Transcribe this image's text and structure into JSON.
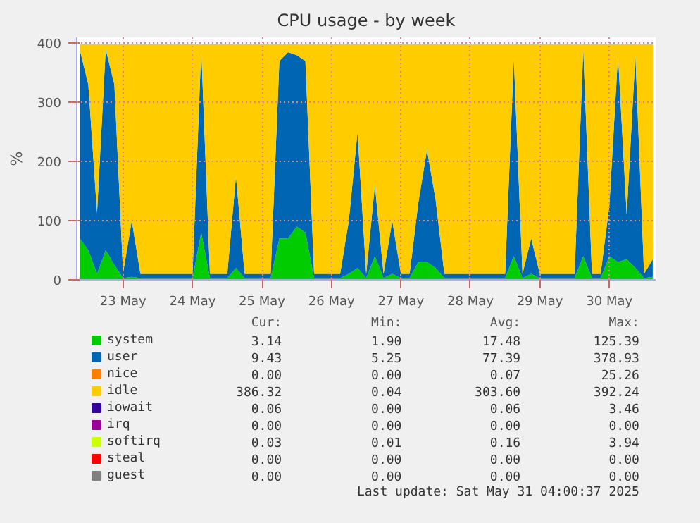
{
  "chart_data": {
    "type": "area",
    "stacked": true,
    "title": "CPU usage - by week",
    "ylabel": "%",
    "ylim": [
      0,
      410
    ],
    "yticks": [
      0,
      100,
      200,
      300,
      400
    ],
    "xlim": [
      "2025-05-22T20:00",
      "2025-05-31T04:00"
    ],
    "xticks": [
      {
        "value": "2025-05-23T12:00",
        "label": "23 May"
      },
      {
        "value": "2025-05-24T12:00",
        "label": "24 May"
      },
      {
        "value": "2025-05-25T12:00",
        "label": "25 May"
      },
      {
        "value": "2025-05-26T12:00",
        "label": "26 May"
      },
      {
        "value": "2025-05-27T12:00",
        "label": "27 May"
      },
      {
        "value": "2025-05-28T12:00",
        "label": "28 May"
      },
      {
        "value": "2025-05-29T12:00",
        "label": "29 May"
      },
      {
        "value": "2025-05-30T12:00",
        "label": "30 May"
      }
    ],
    "grid": true,
    "legend": "bottom",
    "x": [
      "2025-05-22T21:00",
      "2025-05-23T00:00",
      "2025-05-23T03:00",
      "2025-05-23T06:00",
      "2025-05-23T09:00",
      "2025-05-23T12:00",
      "2025-05-23T15:00",
      "2025-05-23T18:00",
      "2025-05-23T21:00",
      "2025-05-24T00:00",
      "2025-05-24T03:00",
      "2025-05-24T06:00",
      "2025-05-24T09:00",
      "2025-05-24T12:00",
      "2025-05-24T15:00",
      "2025-05-24T18:00",
      "2025-05-24T21:00",
      "2025-05-25T00:00",
      "2025-05-25T03:00",
      "2025-05-25T06:00",
      "2025-05-25T09:00",
      "2025-05-25T12:00",
      "2025-05-25T15:00",
      "2025-05-25T18:00",
      "2025-05-25T21:00",
      "2025-05-26T00:00",
      "2025-05-26T03:00",
      "2025-05-26T06:00",
      "2025-05-26T09:00",
      "2025-05-26T12:00",
      "2025-05-26T15:00",
      "2025-05-26T18:00",
      "2025-05-26T21:00",
      "2025-05-27T00:00",
      "2025-05-27T03:00",
      "2025-05-27T06:00",
      "2025-05-27T09:00",
      "2025-05-27T12:00",
      "2025-05-27T15:00",
      "2025-05-27T18:00",
      "2025-05-27T21:00",
      "2025-05-28T00:00",
      "2025-05-28T03:00",
      "2025-05-28T06:00",
      "2025-05-28T09:00",
      "2025-05-28T12:00",
      "2025-05-28T15:00",
      "2025-05-28T18:00",
      "2025-05-28T21:00",
      "2025-05-29T00:00",
      "2025-05-29T03:00",
      "2025-05-29T06:00",
      "2025-05-29T09:00",
      "2025-05-29T12:00",
      "2025-05-29T15:00",
      "2025-05-29T18:00",
      "2025-05-29T21:00",
      "2025-05-30T00:00",
      "2025-05-30T03:00",
      "2025-05-30T06:00",
      "2025-05-30T09:00",
      "2025-05-30T12:00",
      "2025-05-30T15:00",
      "2025-05-30T18:00",
      "2025-05-30T21:00",
      "2025-05-31T00:00",
      "2025-05-31T03:00"
    ],
    "series": [
      {
        "name": "system",
        "color": "#00cc00",
        "values": [
          70,
          50,
          10,
          50,
          25,
          3,
          5,
          3,
          3,
          3,
          3,
          3,
          3,
          3,
          80,
          3,
          3,
          3,
          20,
          3,
          3,
          3,
          3,
          70,
          70,
          90,
          80,
          3,
          3,
          3,
          3,
          10,
          20,
          3,
          40,
          3,
          10,
          3,
          3,
          30,
          30,
          20,
          3,
          3,
          3,
          3,
          3,
          3,
          3,
          3,
          40,
          3,
          10,
          3,
          3,
          3,
          3,
          3,
          40,
          3,
          3,
          40,
          30,
          35,
          20,
          3,
          5
        ]
      },
      {
        "name": "user",
        "color": "#0066b3",
        "values": [
          320,
          280,
          103,
          340,
          305,
          9,
          95,
          7,
          7,
          7,
          7,
          7,
          7,
          7,
          310,
          7,
          7,
          7,
          155,
          7,
          7,
          7,
          7,
          300,
          315,
          290,
          290,
          7,
          7,
          7,
          7,
          90,
          230,
          7,
          120,
          7,
          90,
          7,
          7,
          100,
          190,
          115,
          7,
          7,
          7,
          7,
          7,
          7,
          7,
          7,
          335,
          7,
          60,
          7,
          7,
          7,
          7,
          7,
          350,
          7,
          7,
          85,
          350,
          75,
          360,
          7,
          30
        ]
      },
      {
        "name": "nice",
        "color": "#ff8000",
        "values": [
          null,
          null,
          null,
          null,
          null,
          null,
          null,
          null,
          null,
          null,
          null,
          null,
          null,
          null,
          null,
          null,
          null,
          null,
          null,
          null,
          null,
          null,
          null,
          null,
          null,
          null,
          null,
          null,
          null,
          null,
          null,
          null,
          null,
          null,
          null,
          null,
          null,
          null,
          null,
          null,
          null,
          null,
          null,
          null,
          null,
          null,
          null,
          null,
          null,
          null,
          null,
          null,
          null,
          null,
          null,
          null,
          null,
          null,
          null,
          null,
          null,
          null,
          null,
          null,
          null,
          null,
          null
        ]
      },
      {
        "name": "idle",
        "color": "#ffcc00",
        "values": [
          8,
          68,
          285,
          8,
          68,
          386,
          298,
          388,
          388,
          388,
          388,
          388,
          388,
          388,
          8,
          388,
          388,
          388,
          223,
          388,
          388,
          388,
          388,
          28,
          13,
          18,
          28,
          388,
          388,
          388,
          388,
          298,
          148,
          388,
          238,
          388,
          298,
          388,
          388,
          268,
          178,
          263,
          388,
          388,
          388,
          388,
          388,
          388,
          388,
          388,
          23,
          388,
          328,
          388,
          388,
          388,
          388,
          388,
          8,
          388,
          388,
          273,
          18,
          288,
          18,
          388,
          363
        ]
      },
      {
        "name": "iowait",
        "color": "#330099",
        "values": [
          null,
          null,
          null,
          null,
          null,
          null,
          null,
          null,
          null,
          null,
          null,
          null,
          null,
          null,
          null,
          null,
          null,
          null,
          null,
          null,
          null,
          null,
          null,
          null,
          null,
          null,
          null,
          null,
          null,
          null,
          null,
          null,
          null,
          null,
          null,
          null,
          null,
          null,
          null,
          null,
          null,
          null,
          null,
          null,
          null,
          null,
          null,
          null,
          null,
          null,
          null,
          null,
          null,
          null,
          null,
          null,
          null,
          null,
          null,
          null,
          null,
          null,
          null,
          null,
          null,
          null,
          null
        ]
      },
      {
        "name": "irq",
        "color": "#990099",
        "values": [
          null,
          null,
          null,
          null,
          null,
          null,
          null,
          null,
          null,
          null,
          null,
          null,
          null,
          null,
          null,
          null,
          null,
          null,
          null,
          null,
          null,
          null,
          null,
          null,
          null,
          null,
          null,
          null,
          null,
          null,
          null,
          null,
          null,
          null,
          null,
          null,
          null,
          null,
          null,
          null,
          null,
          null,
          null,
          null,
          null,
          null,
          null,
          null,
          null,
          null,
          null,
          null,
          null,
          null,
          null,
          null,
          null,
          null,
          null,
          null,
          null,
          null,
          null,
          null,
          null,
          null,
          null
        ]
      },
      {
        "name": "softirq",
        "color": "#ccff00",
        "values": [
          null,
          null,
          null,
          null,
          null,
          null,
          null,
          null,
          null,
          null,
          null,
          null,
          null,
          null,
          null,
          null,
          null,
          null,
          null,
          null,
          null,
          null,
          null,
          null,
          null,
          null,
          null,
          null,
          null,
          null,
          null,
          null,
          null,
          null,
          null,
          null,
          null,
          null,
          null,
          null,
          null,
          null,
          null,
          null,
          null,
          null,
          null,
          null,
          null,
          null,
          null,
          null,
          null,
          null,
          null,
          null,
          null,
          null,
          null,
          null,
          null,
          null,
          null,
          null,
          null,
          null,
          null
        ]
      },
      {
        "name": "steal",
        "color": "#ff0000",
        "values": [
          null,
          null,
          null,
          null,
          null,
          null,
          null,
          null,
          null,
          null,
          null,
          null,
          null,
          null,
          null,
          null,
          null,
          null,
          null,
          null,
          null,
          null,
          null,
          null,
          null,
          null,
          null,
          null,
          null,
          null,
          null,
          null,
          null,
          null,
          null,
          null,
          null,
          null,
          null,
          null,
          null,
          null,
          null,
          null,
          null,
          null,
          null,
          null,
          null,
          null,
          null,
          null,
          null,
          null,
          null,
          null,
          null,
          null,
          null,
          null,
          null,
          null,
          null,
          null,
          null,
          null,
          null
        ]
      },
      {
        "name": "guest",
        "color": "#808080",
        "values": [
          null,
          null,
          null,
          null,
          null,
          null,
          null,
          null,
          null,
          null,
          null,
          null,
          null,
          null,
          null,
          null,
          null,
          null,
          null,
          null,
          null,
          null,
          null,
          null,
          null,
          null,
          null,
          null,
          null,
          null,
          null,
          null,
          null,
          null,
          null,
          null,
          null,
          null,
          null,
          null,
          null,
          null,
          null,
          null,
          null,
          null,
          null,
          null,
          null,
          null,
          null,
          null,
          null,
          null,
          null,
          null,
          null,
          null,
          null,
          null,
          null,
          null,
          null,
          null,
          null,
          null,
          null
        ]
      }
    ],
    "annotations": [
      "Cur:",
      "Min:",
      "Avg:",
      "Max:",
      "3.14",
      "1.90",
      "17.48",
      "125.39",
      "9.43",
      "5.25",
      "77.39",
      "378.93",
      "0.00",
      "0.00",
      "0.07",
      "25.26",
      "386.32",
      "0.04",
      "303.60",
      "392.24",
      "0.06",
      "0.00",
      "0.06",
      "3.46",
      "0.00",
      "0.00",
      "0.00",
      "0.00",
      "0.03",
      "0.01",
      "0.16",
      "3.94",
      "0.00",
      "0.00",
      "0.00",
      "0.00",
      "0.00",
      "0.00",
      "0.00",
      "0.00",
      "Last update: Sat May 31 04:00:37 2025"
    ]
  }
}
